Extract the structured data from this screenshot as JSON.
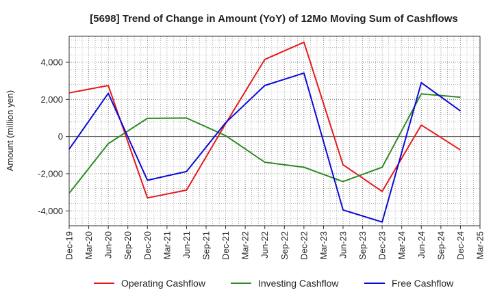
{
  "chart_data": {
    "type": "line",
    "title": "[5698]  Trend of Change in Amount (YoY) of 12Mo Moving Sum of Cashflows",
    "xlabel": "",
    "ylabel": "Amount (million yen)",
    "ylim": [
      -4800,
      5400
    ],
    "yticks": [
      4000,
      2000,
      0,
      -2000,
      -4000
    ],
    "ytick_labels": [
      "4,000",
      "2,000",
      "0",
      "-2,000",
      "-4,000"
    ],
    "categories": [
      "Dec-19",
      "Mar-20",
      "Jun-20",
      "Sep-20",
      "Dec-20",
      "Mar-21",
      "Jun-21",
      "Sep-21",
      "Dec-21",
      "Mar-22",
      "Jun-22",
      "Sep-22",
      "Dec-22",
      "Mar-23",
      "Jun-23",
      "Sep-23",
      "Dec-23",
      "Mar-24",
      "Jun-24",
      "Sep-24",
      "Dec-24",
      "Mar-25"
    ],
    "grid": true,
    "legend_position": "bottom",
    "series": [
      {
        "name": "Operating Cashflow",
        "color": "#e41a1c",
        "points": [
          [
            "Dec-19",
            2350
          ],
          [
            "Jun-20",
            2750
          ],
          [
            "Dec-20",
            -3300
          ],
          [
            "Jun-21",
            -2880
          ],
          [
            "Dec-21",
            700
          ],
          [
            "Jun-22",
            4150
          ],
          [
            "Dec-22",
            5080
          ],
          [
            "Jun-23",
            -1520
          ],
          [
            "Dec-23",
            -2950
          ],
          [
            "Jun-24",
            620
          ],
          [
            "Dec-24",
            -720
          ]
        ]
      },
      {
        "name": "Investing Cashflow",
        "color": "#2e8b22",
        "points": [
          [
            "Dec-19",
            -3050
          ],
          [
            "Jun-20",
            -380
          ],
          [
            "Dec-20",
            980
          ],
          [
            "Jun-21",
            1000
          ],
          [
            "Dec-21",
            50
          ],
          [
            "Jun-22",
            -1380
          ],
          [
            "Dec-22",
            -1650
          ],
          [
            "Jun-23",
            -2420
          ],
          [
            "Dec-23",
            -1650
          ],
          [
            "Jun-24",
            2300
          ],
          [
            "Dec-24",
            2120
          ]
        ]
      },
      {
        "name": "Free Cashflow",
        "color": "#0a0ad6",
        "points": [
          [
            "Dec-19",
            -680
          ],
          [
            "Jun-20",
            2330
          ],
          [
            "Dec-20",
            -2350
          ],
          [
            "Jun-21",
            -1880
          ],
          [
            "Dec-21",
            750
          ],
          [
            "Jun-22",
            2750
          ],
          [
            "Dec-22",
            3420
          ],
          [
            "Jun-23",
            -3950
          ],
          [
            "Dec-23",
            -4600
          ],
          [
            "Jun-24",
            2900
          ],
          [
            "Dec-24",
            1380
          ]
        ]
      }
    ]
  }
}
